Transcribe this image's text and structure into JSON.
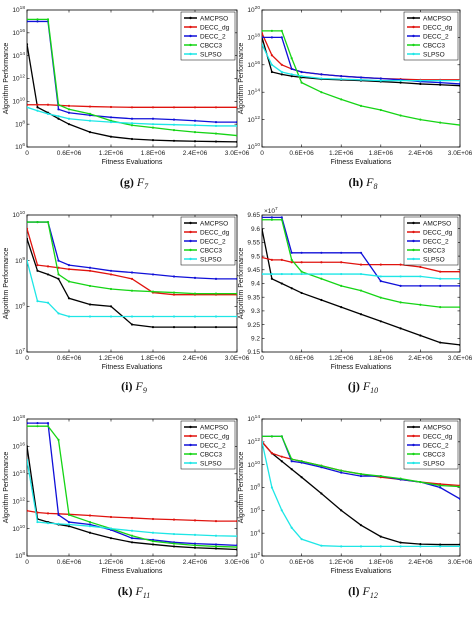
{
  "figure": {
    "x_label": "Fitness Evaluations",
    "y_label": "Algorithm Performance"
  },
  "legend_entries": [
    "AMCPSO",
    "DECC_dg",
    "DECC_2",
    "CBCC3",
    "SLPSO"
  ],
  "colors": {
    "AMCPSO": "#000000",
    "DECC_dg": "#e0130e",
    "DECC_2": "#1010d8",
    "CBCC3": "#15d415",
    "SLPSO": "#1ee6e6"
  },
  "chart_data": [
    {
      "type": "line",
      "caption_letter": "(g)",
      "caption_func": "F",
      "caption_sub": "7",
      "y_scale": "log",
      "ylim": [
        1000000.0,
        1e+18
      ],
      "y_ticks": [
        [
          "10",
          "6"
        ],
        [
          "10",
          "8"
        ],
        [
          "10",
          "10"
        ],
        [
          "10",
          "12"
        ],
        [
          "10",
          "14"
        ],
        [
          "10",
          "16"
        ],
        [
          "10",
          "18"
        ]
      ],
      "x_ticks": [
        "0",
        "0.6E+06",
        "1.2E+06",
        "1.8E+06",
        "2.4E+06",
        "3.0E+06"
      ],
      "xlim": [
        0,
        3000000
      ],
      "legend_position": "top-right",
      "x": [
        0,
        150000,
        300000,
        450000,
        600000,
        900000,
        1200000,
        1500000,
        1800000,
        2100000,
        2400000,
        2700000,
        3000000
      ],
      "series": [
        {
          "name": "AMCPSO",
          "values": [
            1000000000000000.0,
            3000000000.0,
            1000000000.0,
            300000000.0,
            100000000.0,
            20000000.0,
            8000000.0,
            5000000.0,
            4000000.0,
            3500000.0,
            3200000.0,
            3000000.0,
            2800000.0
          ]
        },
        {
          "name": "DECC_dg",
          "values": [
            5000000000.0,
            5000000000.0,
            5000000000.0,
            4500000000.0,
            4000000000.0,
            3500000000.0,
            3200000000.0,
            3000000000.0,
            3000000000.0,
            3000000000.0,
            3000000000.0,
            3000000000.0,
            3000000000.0
          ]
        },
        {
          "name": "DECC_2",
          "values": [
            1e+17,
            1e+17,
            1e+17,
            2000000000.0,
            1000000000.0,
            600000000.0,
            400000000.0,
            300000000.0,
            300000000.0,
            250000000.0,
            200000000.0,
            150000000.0,
            150000000.0
          ]
        },
        {
          "name": "CBCC3",
          "values": [
            1.5e+17,
            1.5e+17,
            1.5e+17,
            5000000000.0,
            2000000000.0,
            800000000.0,
            200000000.0,
            80000000.0,
            50000000.0,
            30000000.0,
            20000000.0,
            15000000.0,
            10000000.0
          ]
        },
        {
          "name": "SLPSO",
          "values": [
            3000000000.0,
            1500000000.0,
            800000000.0,
            500000000.0,
            300000000.0,
            200000000.0,
            150000000.0,
            120000000.0,
            100000000.0,
            90000000.0,
            80000000.0,
            70000000.0,
            70000000.0
          ]
        }
      ]
    },
    {
      "type": "line",
      "caption_letter": "(h)",
      "caption_func": "F",
      "caption_sub": "8",
      "y_scale": "log",
      "ylim": [
        10000000000.0,
        1e+20
      ],
      "y_ticks": [
        [
          "10",
          "10"
        ],
        [
          "10",
          "12"
        ],
        [
          "10",
          "14"
        ],
        [
          "10",
          "16"
        ],
        [
          "10",
          "18"
        ],
        [
          "10",
          "20"
        ]
      ],
      "x_ticks": [
        "0",
        "0.6E+06",
        "1.2E+06",
        "1.8E+06",
        "2.4E+06",
        "3.0E+06"
      ],
      "xlim": [
        0,
        3000000
      ],
      "legend_position": "top-right",
      "x": [
        0,
        150000,
        300000,
        450000,
        600000,
        900000,
        1200000,
        1500000,
        1800000,
        2100000,
        2400000,
        2700000,
        3000000
      ],
      "series": [
        {
          "name": "AMCPSO",
          "values": [
            1e+18,
            3000000000000000.0,
            2000000000000000.0,
            1500000000000000.0,
            1200000000000000.0,
            900000000000000.0,
            800000000000000.0,
            700000000000000.0,
            600000000000000.0,
            500000000000000.0,
            400000000000000.0,
            350000000000000.0,
            300000000000000.0
          ]
        },
        {
          "name": "DECC_dg",
          "values": [
            2e+18,
            5e+16,
            1e+16,
            5000000000000000.0,
            3000000000000000.0,
            2000000000000000.0,
            1500000000000000.0,
            1200000000000000.0,
            1000000000000000.0,
            900000000000000.0,
            800000000000000.0,
            800000000000000.0,
            800000000000000.0
          ]
        },
        {
          "name": "DECC_2",
          "values": [
            1e+18,
            1e+18,
            1e+18,
            5000000000000000.0,
            3000000000000000.0,
            2000000000000000.0,
            1500000000000000.0,
            1200000000000000.0,
            1000000000000000.0,
            800000000000000.0,
            600000000000000.0,
            500000000000000.0,
            400000000000000.0
          ]
        },
        {
          "name": "CBCC3",
          "values": [
            3e+18,
            3e+18,
            3e+18,
            3e+16,
            500000000000000.0,
            100000000000000.0,
            30000000000000.0,
            10000000000000.0,
            5000000000000.0,
            2000000000000.0,
            1000000000000.0,
            600000000000.0,
            400000000000.0
          ]
        },
        {
          "name": "SLPSO",
          "values": [
            3e+17,
            1e+16,
            3000000000000000.0,
            2000000000000000.0,
            1500000000000000.0,
            1000000000000000.0,
            900000000000000.0,
            800000000000000.0,
            700000000000000.0,
            700000000000000.0,
            700000000000000.0,
            700000000000000.0,
            700000000000000.0
          ]
        }
      ]
    },
    {
      "type": "line",
      "caption_letter": "(i)",
      "caption_func": "F",
      "caption_sub": "9",
      "y_scale": "log",
      "ylim": [
        10000000.0,
        10000000000.0
      ],
      "y_ticks": [
        [
          "10",
          "7"
        ],
        [
          "10",
          "8"
        ],
        [
          "10",
          "9"
        ],
        [
          "10",
          "10"
        ]
      ],
      "x_ticks": [
        "0",
        "0.6E+06",
        "1.2E+06",
        "1.8E+06",
        "2.4E+06",
        "3.0E+06"
      ],
      "xlim": [
        0,
        3000000
      ],
      "legend_position": "top-right",
      "x": [
        0,
        150000,
        300000,
        450000,
        600000,
        900000,
        1200000,
        1500000,
        1800000,
        2100000,
        2400000,
        2700000,
        3000000
      ],
      "series": [
        {
          "name": "AMCPSO",
          "values": [
            3000000000.0,
            600000000.0,
            500000000.0,
            400000000.0,
            150000000.0,
            110000000.0,
            100000000.0,
            40000000.0,
            35000000.0,
            35000000.0,
            35000000.0,
            35000000.0,
            35000000.0
          ]
        },
        {
          "name": "DECC_dg",
          "values": [
            5000000000.0,
            800000000.0,
            750000000.0,
            700000000.0,
            650000000.0,
            600000000.0,
            500000000.0,
            400000000.0,
            200000000.0,
            180000000.0,
            180000000.0,
            180000000.0,
            180000000.0
          ]
        },
        {
          "name": "DECC_2",
          "values": [
            7000000000.0,
            7000000000.0,
            7000000000.0,
            1000000000.0,
            800000000.0,
            700000000.0,
            600000000.0,
            550000000.0,
            500000000.0,
            450000000.0,
            420000000.0,
            400000000.0,
            400000000.0
          ]
        },
        {
          "name": "CBCC3",
          "values": [
            7000000000.0,
            7000000000.0,
            7000000000.0,
            500000000.0,
            350000000.0,
            280000000.0,
            240000000.0,
            220000000.0,
            210000000.0,
            200000000.0,
            190000000.0,
            190000000.0,
            190000000.0
          ]
        },
        {
          "name": "SLPSO",
          "values": [
            1000000000.0,
            130000000.0,
            120000000.0,
            70000000.0,
            60000000.0,
            60000000.0,
            60000000.0,
            60000000.0,
            60000000.0,
            60000000.0,
            60000000.0,
            60000000.0,
            60000000.0
          ]
        }
      ]
    },
    {
      "type": "line",
      "caption_letter": "(j)",
      "caption_func": "F",
      "caption_sub": "10",
      "y_scale": "linear",
      "y_multiplier": "×10",
      "y_multiplier_exp": "7",
      "ylim": [
        9.1,
        9.68
      ],
      "y_ticks": [
        "9.15",
        "9.2",
        "9.25",
        "9.3",
        "9.35",
        "9.4",
        "9.45",
        "9.5",
        "9.55",
        "9.6",
        "9.65"
      ],
      "x_ticks": [
        "0",
        "0.6E+06",
        "1.2E+06",
        "1.8E+06",
        "2.4E+06",
        "3.0E+06"
      ],
      "xlim": [
        0,
        3000000
      ],
      "legend_position": "top-right",
      "x": [
        0,
        150000,
        300000,
        450000,
        600000,
        900000,
        1200000,
        1500000,
        1800000,
        2100000,
        2400000,
        2700000,
        3000000
      ],
      "series": [
        {
          "name": "AMCPSO",
          "values": [
            9.62,
            9.41,
            9.39,
            9.37,
            9.35,
            9.32,
            9.29,
            9.26,
            9.23,
            9.2,
            9.17,
            9.14,
            9.13
          ]
        },
        {
          "name": "DECC_dg",
          "values": [
            9.5,
            9.49,
            9.49,
            9.48,
            9.48,
            9.48,
            9.48,
            9.47,
            9.47,
            9.47,
            9.46,
            9.44,
            9.44
          ]
        },
        {
          "name": "DECC_2",
          "values": [
            9.67,
            9.67,
            9.67,
            9.52,
            9.52,
            9.52,
            9.52,
            9.52,
            9.4,
            9.38,
            9.38,
            9.38,
            9.38
          ]
        },
        {
          "name": "CBCC3",
          "values": [
            9.66,
            9.66,
            9.66,
            9.49,
            9.44,
            9.41,
            9.38,
            9.36,
            9.33,
            9.31,
            9.3,
            9.29,
            9.29
          ]
        },
        {
          "name": "SLPSO",
          "values": [
            9.43,
            9.43,
            9.43,
            9.43,
            9.43,
            9.43,
            9.43,
            9.43,
            9.42,
            9.42,
            9.42,
            9.41,
            9.41
          ]
        }
      ]
    },
    {
      "type": "line",
      "caption_letter": "(k)",
      "caption_func": "F",
      "caption_sub": "11",
      "y_scale": "log",
      "ylim": [
        100000000.0,
        1e+18
      ],
      "y_ticks": [
        [
          "10",
          "8"
        ],
        [
          "10",
          "10"
        ],
        [
          "10",
          "12"
        ],
        [
          "10",
          "14"
        ],
        [
          "10",
          "16"
        ],
        [
          "10",
          "18"
        ]
      ],
      "x_ticks": [
        "0",
        "0.6E+06",
        "1.2E+06",
        "1.8E+06",
        "2.4E+06",
        "3.0E+06"
      ],
      "xlim": [
        0,
        3000000
      ],
      "legend_position": "top-right",
      "x": [
        0,
        150000,
        300000,
        450000,
        600000,
        900000,
        1200000,
        1500000,
        1800000,
        2100000,
        2400000,
        2700000,
        3000000
      ],
      "series": [
        {
          "name": "AMCPSO",
          "values": [
            1e+16,
            50000000000.0,
            30000000000.0,
            20000000000.0,
            15000000000.0,
            5000000000.0,
            2000000000.0,
            1000000000.0,
            700000000.0,
            500000000.0,
            400000000.0,
            350000000.0,
            300000000.0
          ]
        },
        {
          "name": "DECC_dg",
          "values": [
            200000000000.0,
            150000000000.0,
            130000000000.0,
            120000000000.0,
            110000000000.0,
            90000000000.0,
            70000000000.0,
            60000000000.0,
            50000000000.0,
            45000000000.0,
            40000000000.0,
            35000000000.0,
            35000000000.0
          ]
        },
        {
          "name": "DECC_2",
          "values": [
            5e+17,
            5e+17,
            5e+17,
            100000000000.0,
            30000000000.0,
            20000000000.0,
            8000000000.0,
            2000000000.0,
            1500000000.0,
            1000000000.0,
            800000000.0,
            700000000.0,
            600000000.0
          ]
        },
        {
          "name": "CBCC3",
          "values": [
            3e+17,
            3e+17,
            3e+17,
            3e+16,
            100000000000.0,
            30000000000.0,
            10000000000.0,
            3000000000.0,
            1200000000.0,
            800000000.0,
            600000000.0,
            500000000.0,
            450000000.0
          ]
        },
        {
          "name": "SLPSO",
          "values": [
            1000000000000000.0,
            30000000000.0,
            25000000000.0,
            22000000000.0,
            20000000000.0,
            15000000000.0,
            10000000000.0,
            7000000000.0,
            5000000000.0,
            4000000000.0,
            3500000000.0,
            3000000000.0,
            2800000000.0
          ]
        }
      ]
    },
    {
      "type": "line",
      "caption_letter": "(l)",
      "caption_func": "F",
      "caption_sub": "12",
      "y_scale": "log",
      "ylim": [
        100.0,
        100000000000000.0
      ],
      "y_ticks": [
        [
          "10",
          "2"
        ],
        [
          "10",
          "4"
        ],
        [
          "10",
          "6"
        ],
        [
          "10",
          "8"
        ],
        [
          "10",
          "10"
        ],
        [
          "10",
          "12"
        ],
        [
          "10",
          "14"
        ]
      ],
      "x_ticks": [
        "0",
        "0.6E+06",
        "1.2E+06",
        "1.8E+06",
        "2.4E+06",
        "3.0E+06"
      ],
      "xlim": [
        0,
        3000000
      ],
      "legend_position": "top-right",
      "x": [
        0,
        150000,
        300000,
        450000,
        600000,
        900000,
        1200000,
        1500000,
        1800000,
        2100000,
        2400000,
        2700000,
        3000000
      ],
      "series": [
        {
          "name": "AMCPSO",
          "values": [
            1000000000000.0,
            100000000000.0,
            20000000000.0,
            4000000000.0,
            800000000.0,
            30000000.0,
            1000000.0,
            50000.0,
            5000.0,
            1500.0,
            1100.0,
            1000.0,
            1000.0
          ]
        },
        {
          "name": "DECC_dg",
          "values": [
            1000000000000.0,
            100000000000.0,
            50000000000.0,
            30000000000.0,
            20000000000.0,
            8000000000.0,
            3000000000.0,
            1500000000.0,
            800000000.0,
            500000000.0,
            300000000.0,
            200000000.0,
            150000000.0
          ]
        },
        {
          "name": "DECC_2",
          "values": [
            3000000000000.0,
            3000000000000.0,
            3000000000000.0,
            20000000000.0,
            15000000000.0,
            6000000000.0,
            2000000000.0,
            1000000000.0,
            1000000000.0,
            500000000.0,
            300000000.0,
            100000000.0,
            10000000.0
          ]
        },
        {
          "name": "CBCC3",
          "values": [
            3000000000000.0,
            3000000000000.0,
            3000000000000.0,
            30000000000.0,
            20000000000.0,
            8000000000.0,
            3000000000.0,
            1500000000.0,
            1000000000.0,
            600000000.0,
            300000000.0,
            150000000.0,
            120000000.0
          ]
        },
        {
          "name": "SLPSO",
          "values": [
            1000000000000.0,
            100000000.0,
            1000000.0,
            30000.0,
            3000.0,
            800.0,
            700.0,
            700.0,
            700.0,
            700.0,
            700.0,
            700.0,
            700.0
          ]
        }
      ]
    }
  ]
}
